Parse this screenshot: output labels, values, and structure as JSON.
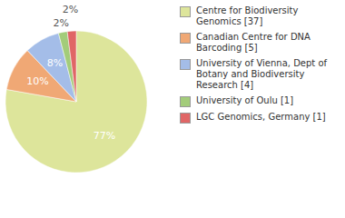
{
  "chart_data": {
    "type": "pie",
    "categories": [
      "Centre for Biodiversity Genomics [37]",
      "Canadian Centre for DNA Barcoding [5]",
      "University of Vienna, Dept of Botany and Biodiversity Research [4]",
      "University of Oulu [1]",
      "LGC Genomics, Germany [1]"
    ],
    "values": [
      77,
      10,
      8,
      2,
      2
    ],
    "value_labels": [
      "77%",
      "10%",
      "8%",
      "2%",
      "2%"
    ],
    "colors": [
      "#dde59b",
      "#f0a875",
      "#a4bde8",
      "#a3cc7a",
      "#e06666"
    ],
    "data_labels": true,
    "legend": "upper right"
  }
}
